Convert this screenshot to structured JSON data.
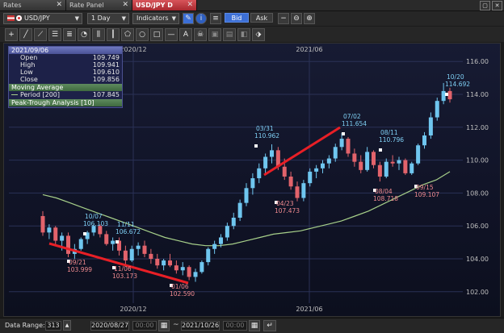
{
  "tabs": [
    {
      "label": "Rates"
    },
    {
      "label": "Rate Panel"
    },
    {
      "label": "USD/JPY D",
      "active": true
    }
  ],
  "toolbar": {
    "symbol": "USD/JPY",
    "period": "1 Day",
    "indicators": "Indicators",
    "bid": "Bid",
    "ask": "Ask",
    "active_price": "Bid"
  },
  "info": {
    "date": "2021/09/06",
    "open_label": "Open",
    "open": "109.749",
    "high_label": "High",
    "high": "109.941",
    "low_label": "Low",
    "low": "109.610",
    "close_label": "Close",
    "close": "109.856",
    "ma_title": "Moving Average",
    "ma_period_label": "Period [200]",
    "ma_value": "107.845",
    "peak_title": "Peak-Trough Analysis [10]"
  },
  "chart_data": {
    "type": "candlestick",
    "x_range": [
      "2020/08/27",
      "2021/10/26"
    ],
    "y_range": [
      101.5,
      116.5
    ],
    "y_ticks": [
      "116.00",
      "114.00",
      "112.00",
      "110.00",
      "108.00",
      "106.00",
      "104.00",
      "102.00"
    ],
    "x_ticks_top": [
      "2020/12",
      "2021/06"
    ],
    "x_ticks_bottom": [
      "2020/12",
      "2021/06"
    ],
    "ohlc": [
      {
        "o": 106.6,
        "h": 106.9,
        "l": 105.4,
        "c": 105.6
      },
      {
        "o": 105.6,
        "h": 106.1,
        "l": 105.2,
        "c": 105.9
      },
      {
        "o": 105.9,
        "h": 106.0,
        "l": 104.8,
        "c": 105.1
      },
      {
        "o": 105.1,
        "h": 105.6,
        "l": 104.5,
        "c": 105.4
      },
      {
        "o": 105.4,
        "h": 105.6,
        "l": 104.1,
        "c": 104.3
      },
      {
        "o": 104.3,
        "h": 104.9,
        "l": 104.0,
        "c": 104.6
      },
      {
        "o": 104.6,
        "h": 105.3,
        "l": 104.5,
        "c": 105.2
      },
      {
        "o": 105.2,
        "h": 105.7,
        "l": 104.9,
        "c": 105.6
      },
      {
        "o": 105.6,
        "h": 106.1,
        "l": 105.4,
        "c": 106.0
      },
      {
        "o": 106.0,
        "h": 106.1,
        "l": 105.3,
        "c": 105.5
      },
      {
        "o": 105.5,
        "h": 105.7,
        "l": 104.8,
        "c": 104.9
      },
      {
        "o": 104.9,
        "h": 105.3,
        "l": 104.5,
        "c": 105.1
      },
      {
        "o": 105.1,
        "h": 105.3,
        "l": 104.2,
        "c": 104.5
      },
      {
        "o": 104.5,
        "h": 104.8,
        "l": 103.6,
        "c": 103.9
      },
      {
        "o": 103.9,
        "h": 104.8,
        "l": 103.8,
        "c": 104.6
      },
      {
        "o": 104.6,
        "h": 105.0,
        "l": 104.2,
        "c": 104.8
      },
      {
        "o": 104.8,
        "h": 105.1,
        "l": 104.1,
        "c": 104.3
      },
      {
        "o": 104.3,
        "h": 104.6,
        "l": 103.7,
        "c": 104.0
      },
      {
        "o": 104.0,
        "h": 104.3,
        "l": 103.4,
        "c": 103.6
      },
      {
        "o": 103.6,
        "h": 104.0,
        "l": 103.3,
        "c": 103.9
      },
      {
        "o": 103.9,
        "h": 104.3,
        "l": 103.5,
        "c": 103.6
      },
      {
        "o": 103.6,
        "h": 103.9,
        "l": 103.1,
        "c": 103.3
      },
      {
        "o": 103.3,
        "h": 103.8,
        "l": 103.0,
        "c": 103.5
      },
      {
        "o": 103.5,
        "h": 103.6,
        "l": 102.7,
        "c": 102.9
      },
      {
        "o": 102.9,
        "h": 103.4,
        "l": 102.6,
        "c": 103.2
      },
      {
        "o": 103.2,
        "h": 103.9,
        "l": 103.1,
        "c": 103.8
      },
      {
        "o": 103.8,
        "h": 104.7,
        "l": 103.6,
        "c": 104.6
      },
      {
        "o": 104.6,
        "h": 105.1,
        "l": 104.3,
        "c": 104.9
      },
      {
        "o": 104.9,
        "h": 105.5,
        "l": 104.7,
        "c": 105.3
      },
      {
        "o": 105.3,
        "h": 106.2,
        "l": 105.1,
        "c": 106.0
      },
      {
        "o": 106.0,
        "h": 106.8,
        "l": 105.8,
        "c": 106.5
      },
      {
        "o": 106.5,
        "h": 107.6,
        "l": 106.3,
        "c": 107.4
      },
      {
        "o": 107.4,
        "h": 108.6,
        "l": 107.2,
        "c": 108.3
      },
      {
        "o": 108.3,
        "h": 109.2,
        "l": 107.9,
        "c": 108.9
      },
      {
        "o": 108.9,
        "h": 109.8,
        "l": 108.6,
        "c": 109.5
      },
      {
        "o": 109.5,
        "h": 110.4,
        "l": 109.1,
        "c": 110.2
      },
      {
        "o": 110.2,
        "h": 110.96,
        "l": 109.8,
        "c": 110.6
      },
      {
        "o": 110.6,
        "h": 110.8,
        "l": 109.4,
        "c": 109.6
      },
      {
        "o": 109.6,
        "h": 110.1,
        "l": 108.8,
        "c": 109.0
      },
      {
        "o": 109.0,
        "h": 109.3,
        "l": 108.2,
        "c": 108.4
      },
      {
        "o": 108.4,
        "h": 108.7,
        "l": 107.5,
        "c": 107.7
      },
      {
        "o": 107.7,
        "h": 108.8,
        "l": 107.5,
        "c": 108.6
      },
      {
        "o": 108.6,
        "h": 109.5,
        "l": 108.4,
        "c": 109.3
      },
      {
        "o": 109.3,
        "h": 109.7,
        "l": 108.9,
        "c": 109.5
      },
      {
        "o": 109.5,
        "h": 110.0,
        "l": 109.2,
        "c": 109.8
      },
      {
        "o": 109.8,
        "h": 110.3,
        "l": 109.5,
        "c": 110.1
      },
      {
        "o": 110.1,
        "h": 111.0,
        "l": 109.9,
        "c": 110.8
      },
      {
        "o": 110.8,
        "h": 111.65,
        "l": 110.6,
        "c": 111.3
      },
      {
        "o": 111.3,
        "h": 111.4,
        "l": 110.2,
        "c": 110.4
      },
      {
        "o": 110.4,
        "h": 110.7,
        "l": 109.6,
        "c": 109.9
      },
      {
        "o": 109.9,
        "h": 110.3,
        "l": 109.2,
        "c": 109.4
      },
      {
        "o": 109.4,
        "h": 110.8,
        "l": 109.3,
        "c": 110.5
      },
      {
        "o": 110.5,
        "h": 110.6,
        "l": 109.5,
        "c": 109.7
      },
      {
        "o": 109.7,
        "h": 109.9,
        "l": 108.7,
        "c": 109.0
      },
      {
        "o": 109.0,
        "h": 110.1,
        "l": 108.9,
        "c": 109.9
      },
      {
        "o": 109.9,
        "h": 110.3,
        "l": 109.6,
        "c": 109.8
      },
      {
        "o": 109.8,
        "h": 110.2,
        "l": 109.4,
        "c": 110.0
      },
      {
        "o": 110.0,
        "h": 110.1,
        "l": 109.1,
        "c": 109.2
      },
      {
        "o": 109.2,
        "h": 109.9,
        "l": 109.1,
        "c": 109.8
      },
      {
        "o": 109.8,
        "h": 111.0,
        "l": 109.7,
        "c": 110.9
      },
      {
        "o": 110.9,
        "h": 111.7,
        "l": 110.7,
        "c": 111.5
      },
      {
        "o": 111.5,
        "h": 112.9,
        "l": 111.3,
        "c": 112.6
      },
      {
        "o": 112.6,
        "h": 113.8,
        "l": 112.4,
        "c": 113.6
      },
      {
        "o": 113.6,
        "h": 114.69,
        "l": 113.4,
        "c": 114.2
      },
      {
        "o": 114.2,
        "h": 114.4,
        "l": 113.5,
        "c": 113.7
      }
    ],
    "moving_average": {
      "name": "Moving Average",
      "period": 200,
      "values": [
        107.9,
        107.7,
        107.4,
        107.1,
        106.8,
        106.5,
        106.2,
        105.9,
        105.6,
        105.3,
        105.1,
        104.9,
        104.8,
        104.8,
        104.9,
        105.1,
        105.3,
        105.5,
        105.6,
        105.7,
        105.9,
        106.1,
        106.3,
        106.6,
        106.9,
        107.3,
        107.7,
        108.1,
        108.5,
        108.8,
        109.3
      ]
    },
    "annotations": [
      {
        "date": "10/07",
        "value": "106.103",
        "kind": "peak"
      },
      {
        "date": "11/11",
        "value": "106.672",
        "kind": "peak"
      },
      {
        "date": "09/21",
        "value": "103.999",
        "kind": "trough"
      },
      {
        "date": "11/06",
        "value": "103.173",
        "kind": "trough"
      },
      {
        "date": "01/06",
        "value": "102.590",
        "kind": "trough"
      },
      {
        "date": "03/31",
        "value": "110.962",
        "kind": "peak"
      },
      {
        "date": "04/23",
        "value": "107.473",
        "kind": "trough"
      },
      {
        "date": "07/02",
        "value": "111.654",
        "kind": "peak"
      },
      {
        "date": "08/11",
        "value": "110.796",
        "kind": "peak"
      },
      {
        "date": "08/04",
        "value": "108.718",
        "kind": "trough"
      },
      {
        "date": "09/15",
        "value": "109.107",
        "kind": "trough"
      },
      {
        "date": "10/20",
        "value": "114.692",
        "kind": "peak"
      }
    ],
    "colors": {
      "up": "#6fc6ef",
      "down": "#e2636b",
      "ma": "#a7d08a",
      "trend": "#e81f26",
      "peak_label": "#7fd0f5",
      "trough_label": "#f08a8f"
    }
  },
  "bottom": {
    "range_label": "Data Range:",
    "range_value": "313",
    "from_date": "2020/08/27",
    "from_time": "00:00",
    "sep": "~",
    "to_date": "2021/10/26",
    "to_time": "00:00"
  }
}
